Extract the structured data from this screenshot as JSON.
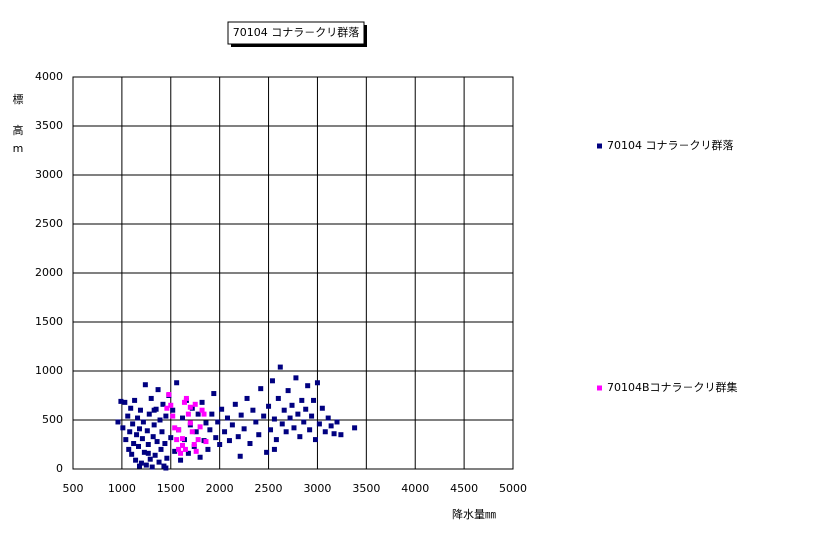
{
  "chart_data": {
    "type": "scatter",
    "title": "70104 コナラ－クリ群落",
    "xlabel": "降水量㎜",
    "ylabel": [
      "標",
      "高",
      "m"
    ],
    "xlim": [
      500,
      5000
    ],
    "ylim": [
      0,
      4000
    ],
    "xticks": [
      500,
      1000,
      1500,
      2000,
      2500,
      3000,
      3500,
      4000,
      4500,
      5000
    ],
    "yticks": [
      0,
      500,
      1000,
      1500,
      2000,
      2500,
      3000,
      3500,
      4000
    ],
    "grid": true,
    "series": [
      {
        "name": "70104 コナラ－クリ群落",
        "color": "#000080",
        "x": [
          960,
          990,
          1010,
          1030,
          1040,
          1060,
          1070,
          1080,
          1090,
          1100,
          1110,
          1120,
          1130,
          1140,
          1150,
          1160,
          1170,
          1180,
          1190,
          1200,
          1210,
          1220,
          1230,
          1240,
          1250,
          1260,
          1270,
          1280,
          1290,
          1300,
          1310,
          1320,
          1330,
          1340,
          1350,
          1360,
          1370,
          1380,
          1390,
          1400,
          1410,
          1420,
          1430,
          1440,
          1450,
          1460,
          1480,
          1500,
          1520,
          1540,
          1560,
          1580,
          1600,
          1620,
          1640,
          1660,
          1680,
          1700,
          1720,
          1740,
          1760,
          1780,
          1800,
          1820,
          1840,
          1860,
          1880,
          1900,
          1920,
          1940,
          1960,
          1980,
          2000,
          2020,
          2050,
          2080,
          2100,
          2130,
          2160,
          2190,
          2220,
          2250,
          2280,
          2310,
          2340,
          2370,
          2400,
          2420,
          2450,
          2480,
          2500,
          2520,
          2540,
          2560,
          2580,
          2600,
          2620,
          2640,
          2660,
          2680,
          2700,
          2720,
          2740,
          2760,
          2780,
          2800,
          2820,
          2840,
          2860,
          2880,
          2900,
          2920,
          2940,
          2960,
          2980,
          3000,
          3020,
          3050,
          3080,
          3110,
          3140,
          3170,
          3200,
          3240,
          3380,
          2560,
          2210,
          1450,
          1330,
          1180,
          1270
        ],
        "y": [
          480,
          690,
          420,
          680,
          300,
          540,
          200,
          380,
          620,
          150,
          460,
          260,
          700,
          90,
          350,
          520,
          230,
          410,
          600,
          60,
          310,
          480,
          170,
          860,
          40,
          390,
          250,
          560,
          100,
          720,
          20,
          330,
          450,
          140,
          610,
          280,
          810,
          70,
          500,
          200,
          380,
          660,
          30,
          260,
          540,
          110,
          750,
          320,
          600,
          180,
          880,
          400,
          90,
          520,
          300,
          700,
          160,
          450,
          620,
          230,
          380,
          560,
          120,
          680,
          290,
          470,
          200,
          400,
          560,
          770,
          320,
          480,
          250,
          610,
          380,
          520,
          290,
          450,
          660,
          330,
          550,
          410,
          720,
          260,
          600,
          480,
          350,
          820,
          540,
          170,
          640,
          400,
          900,
          510,
          300,
          720,
          1040,
          460,
          600,
          380,
          800,
          520,
          650,
          420,
          930,
          560,
          330,
          700,
          480,
          610,
          850,
          400,
          540,
          700,
          300,
          880,
          460,
          620,
          380,
          520,
          440,
          360,
          480,
          350,
          420,
          200,
          130,
          10,
          600,
          30,
          160
        ]
      },
      {
        "name": "70104Bコナラ－クリ群集",
        "color": "#ff00ff",
        "x": [
          1460,
          1480,
          1500,
          1520,
          1540,
          1560,
          1580,
          1600,
          1620,
          1640,
          1660,
          1680,
          1700,
          1720,
          1740,
          1760,
          1780,
          1800,
          1820,
          1840,
          1860,
          1700,
          1650,
          1580,
          1750,
          1620
        ],
        "y": [
          620,
          760,
          650,
          540,
          420,
          300,
          200,
          160,
          240,
          680,
          720,
          560,
          470,
          380,
          250,
          180,
          300,
          430,
          600,
          560,
          280,
          630,
          200,
          400,
          660,
          310
        ]
      }
    ]
  }
}
